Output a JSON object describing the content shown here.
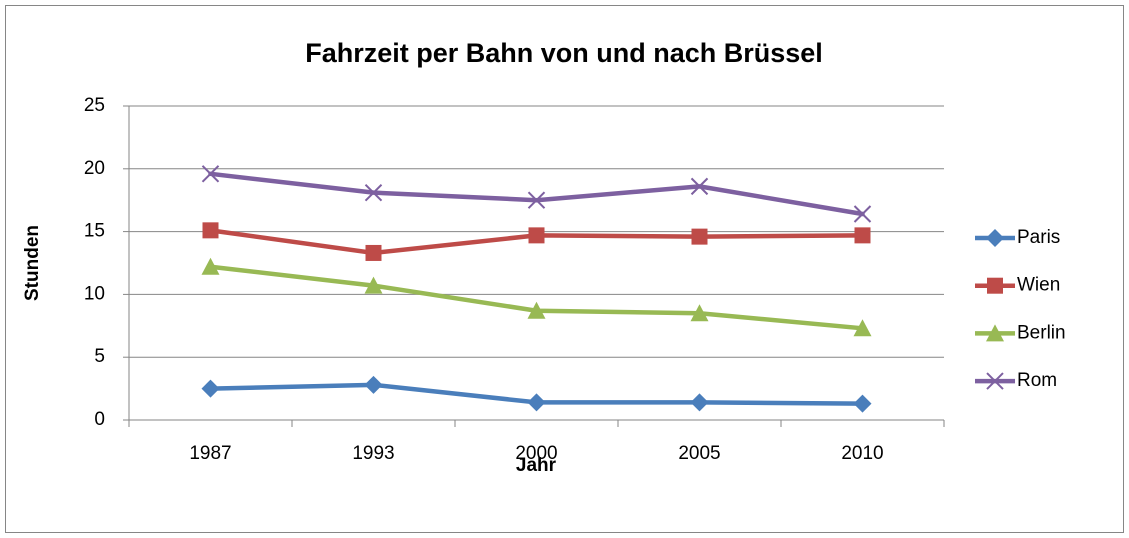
{
  "chart_data": {
    "type": "line",
    "title": "Fahrzeit per Bahn von und nach Brüssel",
    "x_label": "Jahr",
    "y_label": "Stunden",
    "categories": [
      "1987",
      "1993",
      "2000",
      "2005",
      "2010"
    ],
    "series": [
      {
        "name": "Paris",
        "color": "#4a7ebb",
        "marker": "diamond",
        "values": [
          2.5,
          2.8,
          1.4,
          1.4,
          1.3
        ]
      },
      {
        "name": "Wien",
        "color": "#be4b48",
        "marker": "square",
        "values": [
          15.1,
          13.3,
          14.7,
          14.6,
          14.7
        ]
      },
      {
        "name": "Berlin",
        "color": "#98b954",
        "marker": "triangle",
        "values": [
          12.2,
          10.7,
          8.7,
          8.5,
          7.3
        ]
      },
      {
        "name": "Rom",
        "color": "#7d60a0",
        "marker": "x",
        "values": [
          19.6,
          18.1,
          17.5,
          18.6,
          16.4
        ]
      }
    ],
    "ylim": [
      0,
      25
    ],
    "yticks": [
      0,
      5,
      10,
      15,
      20,
      25
    ],
    "grid": true,
    "legend": "right"
  }
}
